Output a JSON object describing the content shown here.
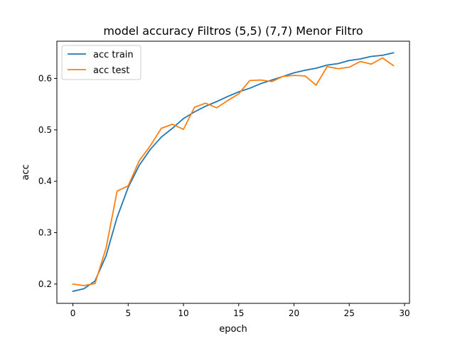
{
  "chart_data": {
    "type": "line",
    "title": "model accuracy Filtros (5,5) (7,7) Menor Filtro",
    "xlabel": "epoch",
    "ylabel": "acc",
    "xlim": [
      -1.45,
      30.45
    ],
    "ylim": [
      0.1625,
      0.6725
    ],
    "xticks": [
      0,
      5,
      10,
      15,
      20,
      25,
      30
    ],
    "yticks": [
      0.2,
      0.3,
      0.4,
      0.5,
      0.6
    ],
    "x": [
      0,
      1,
      2,
      3,
      4,
      5,
      6,
      7,
      8,
      9,
      10,
      11,
      12,
      13,
      14,
      15,
      16,
      17,
      18,
      19,
      20,
      21,
      22,
      23,
      24,
      25,
      26,
      27,
      28,
      29
    ],
    "series": [
      {
        "name": "acc train",
        "color": "#1f77b4",
        "values": [
          0.186,
          0.191,
          0.206,
          0.255,
          0.33,
          0.388,
          0.431,
          0.462,
          0.486,
          0.503,
          0.522,
          0.535,
          0.546,
          0.555,
          0.565,
          0.574,
          0.581,
          0.59,
          0.597,
          0.604,
          0.611,
          0.616,
          0.62,
          0.626,
          0.629,
          0.635,
          0.638,
          0.643,
          0.645,
          0.65
        ]
      },
      {
        "name": "acc test",
        "color": "#ff7f0e",
        "values": [
          0.2,
          0.197,
          0.201,
          0.27,
          0.381,
          0.391,
          0.44,
          0.469,
          0.503,
          0.511,
          0.501,
          0.544,
          0.552,
          0.543,
          0.557,
          0.57,
          0.596,
          0.597,
          0.594,
          0.604,
          0.606,
          0.605,
          0.587,
          0.623,
          0.619,
          0.622,
          0.633,
          0.628,
          0.64,
          0.625
        ]
      }
    ],
    "legend_position": "upper-left",
    "grid": false
  }
}
